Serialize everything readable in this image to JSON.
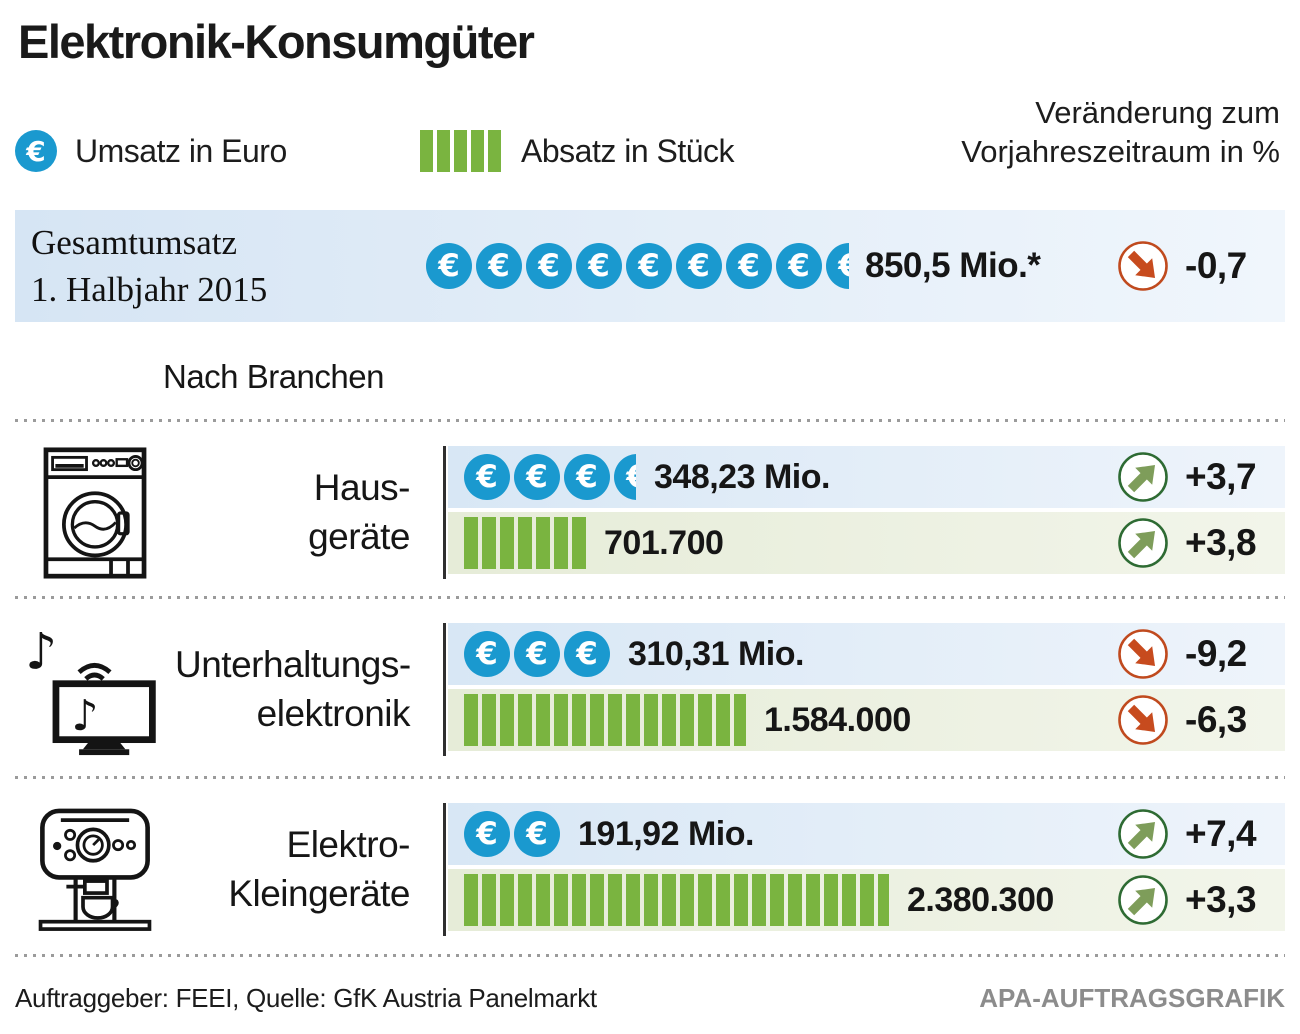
{
  "title": "Elektronik-Konsumgüter",
  "legend": {
    "euro_label": "Umsatz in Euro",
    "units_label": "Absatz in Stück",
    "change_line1": "Veränderung zum",
    "change_line2": "Vorjahreszeitraum in %"
  },
  "icon_unit": {
    "coin_mio_eur": 100,
    "bar_stueck": 100000
  },
  "total": {
    "label_line1": "Gesamtumsatz",
    "label_line2": "1. Halbjahr 2015",
    "value": "850,5 Mio.*",
    "coins": 8.505,
    "change": "-0,7",
    "direction": "down"
  },
  "section_label": "Nach Branchen",
  "branches": [
    {
      "icon": "washing-machine-icon",
      "name_line1": "Haus-",
      "name_line2": "geräte",
      "revenue": {
        "value": "348,23 Mio.",
        "coins": 3.4823,
        "change": "+3,7",
        "direction": "up"
      },
      "units": {
        "value": "701.700",
        "bars": 7.017,
        "change": "+3,8",
        "direction": "up"
      }
    },
    {
      "icon": "entertainment-tv-icon",
      "name_line1": "Unterhaltungs-",
      "name_line2": "elektronik",
      "revenue": {
        "value": "310,31 Mio.",
        "coins": 3.1031,
        "change": "-9,2",
        "direction": "down"
      },
      "units": {
        "value": "1.584.000",
        "bars": 15.84,
        "change": "-6,3",
        "direction": "down"
      }
    },
    {
      "icon": "coffee-machine-icon",
      "name_line1": "Elektro-",
      "name_line2": "Kleingeräte",
      "revenue": {
        "value": "191,92 Mio.",
        "coins": 1.9192,
        "change": "+7,4",
        "direction": "up"
      },
      "units": {
        "value": "2.380.300",
        "bars": 23.803,
        "change": "+3,3",
        "direction": "up"
      }
    }
  ],
  "footer": {
    "source": "Auftraggeber: FEEI, Quelle: GfK Austria Panelmarkt",
    "credit": "APA-AUFTRAGSGRAFIK"
  },
  "colors": {
    "euro_blue": "#1a99cf",
    "bar_green": "#7ab440",
    "trend_up_arrow": "#7e9d5a",
    "trend_up_ring": "#2e6b33",
    "trend_down": "#c74b1e",
    "row_blue_bg": "#d8e7f5",
    "row_green_bg": "#e6ecd8"
  },
  "chart_data": {
    "type": "bar",
    "title": "Elektronik-Konsumgüter",
    "subtitle": "1. Halbjahr 2015",
    "legend_position": "top",
    "total": {
      "umsatz_mio_eur": 850.5,
      "veraenderung_pct": -0.7
    },
    "categories": [
      "Hausgeräte",
      "Unterhaltungselektronik",
      "Elektro-Kleingeräte"
    ],
    "series": [
      {
        "name": "Umsatz in Euro (Mio.)",
        "values": [
          348.23,
          310.31,
          191.92
        ]
      },
      {
        "name": "Umsatz Veränderung zum Vorjahreszeitraum in %",
        "values": [
          3.7,
          -9.2,
          7.4
        ]
      },
      {
        "name": "Absatz in Stück",
        "values": [
          701700,
          1584000,
          2380300
        ]
      },
      {
        "name": "Absatz Veränderung zum Vorjahreszeitraum in %",
        "values": [
          3.8,
          -6.3,
          3.3
        ]
      }
    ],
    "annotations": [
      "*",
      "Nach Branchen"
    ],
    "source": "Auftraggeber: FEEI, Quelle: GfK Austria Panelmarkt"
  }
}
